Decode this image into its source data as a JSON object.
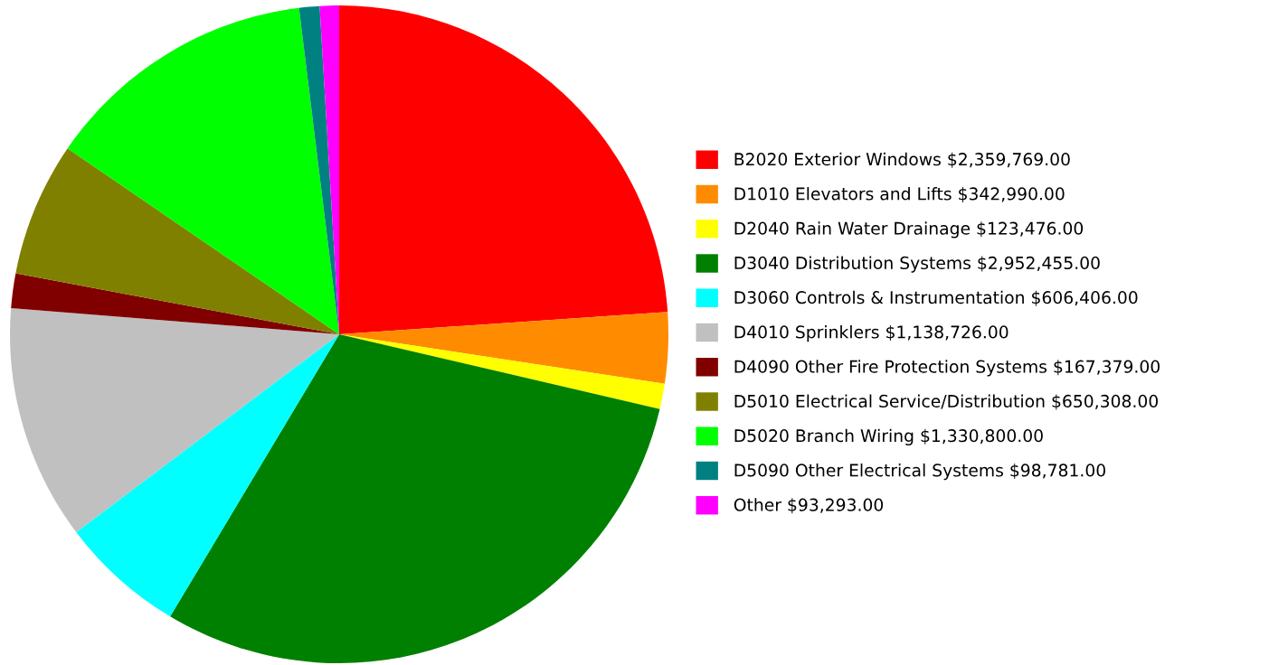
{
  "chart_data": {
    "type": "pie",
    "categories": [
      "B2020 Exterior Windows",
      "D1010 Elevators and Lifts",
      "D2040 Rain Water Drainage",
      "D3040 Distribution Systems",
      "D3060 Controls & Instrumentation",
      "D4010 Sprinklers",
      "D4090 Other Fire Protection Systems",
      "D5010 Electrical Service/Distribution",
      "D5020 Branch Wiring",
      "D5090 Other Electrical Systems",
      "Other"
    ],
    "values": [
      2359769,
      342990,
      123476,
      2952455,
      606406,
      1138726,
      167379,
      650308,
      1330800,
      98781,
      93293
    ],
    "value_labels": [
      "$2,359,769.00",
      "$342,990.00",
      "$123,476.00",
      "$2,952,455.00",
      "$606,406.00",
      "$1,138,726.00",
      "$167,379.00",
      "$650,308.00",
      "$1,330,800.00",
      "$98,781.00",
      "$93,293.00"
    ],
    "colors": [
      "#ff0000",
      "#ff8c00",
      "#ffff00",
      "#008000",
      "#00ffff",
      "#c0c0c0",
      "#800000",
      "#808000",
      "#00ff00",
      "#008080",
      "#ff00ff"
    ],
    "legend": "right"
  }
}
